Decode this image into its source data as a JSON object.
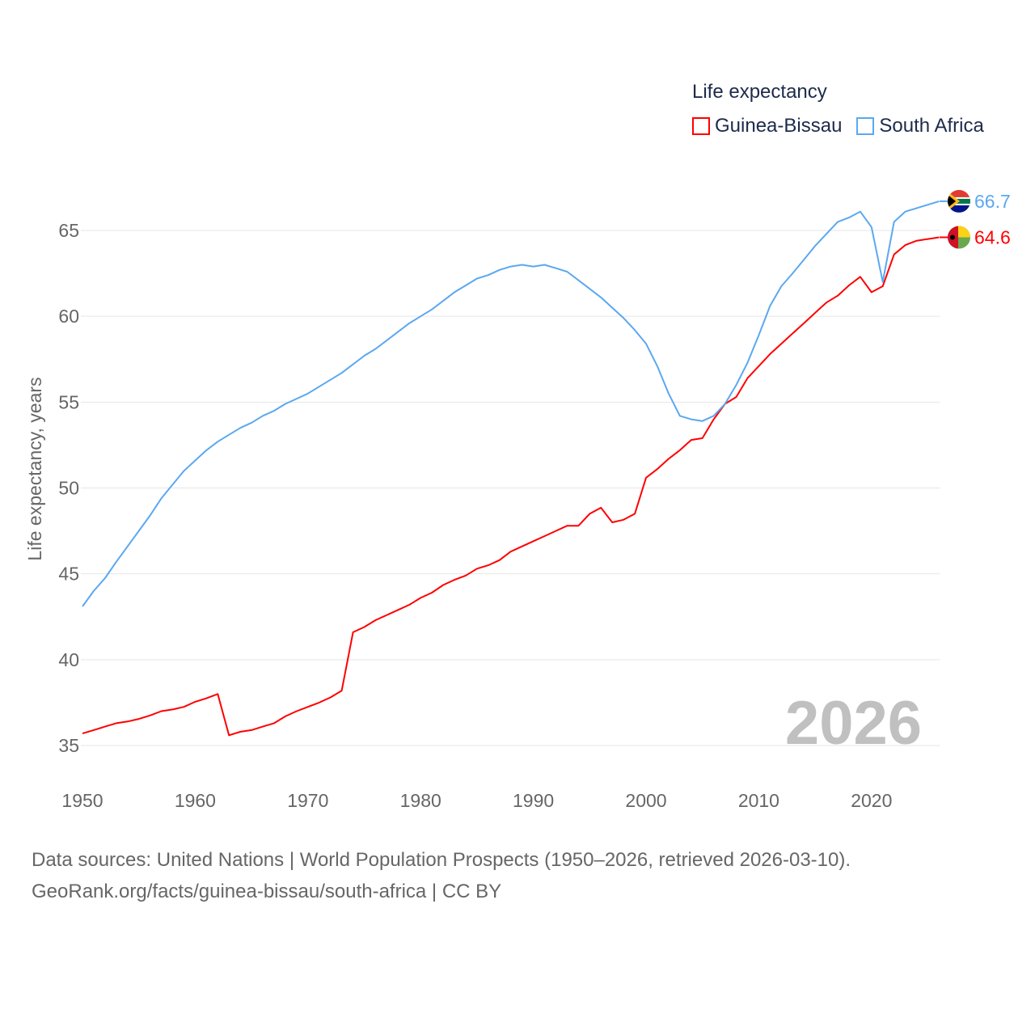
{
  "chart_data": {
    "type": "line",
    "legend_title": "Life expectancy",
    "ylabel": "Life expectancy, years",
    "xlabel": "",
    "xlim": [
      1950,
      2026
    ],
    "ylim": [
      33,
      68
    ],
    "x_ticks": [
      1950,
      1960,
      1970,
      1980,
      1990,
      2000,
      2010,
      2020
    ],
    "y_ticks": [
      35,
      40,
      45,
      50,
      55,
      60,
      65
    ],
    "grid": true,
    "legend_placement": "top-right",
    "year_watermark": "2026",
    "x": [
      1950,
      1951,
      1952,
      1953,
      1954,
      1955,
      1956,
      1957,
      1958,
      1959,
      1960,
      1961,
      1962,
      1963,
      1964,
      1965,
      1966,
      1967,
      1968,
      1969,
      1970,
      1971,
      1972,
      1973,
      1974,
      1975,
      1976,
      1977,
      1978,
      1979,
      1980,
      1981,
      1982,
      1983,
      1984,
      1985,
      1986,
      1987,
      1988,
      1989,
      1990,
      1991,
      1992,
      1993,
      1994,
      1995,
      1996,
      1997,
      1998,
      1999,
      2000,
      2001,
      2002,
      2003,
      2004,
      2005,
      2006,
      2007,
      2008,
      2009,
      2010,
      2011,
      2012,
      2013,
      2014,
      2015,
      2016,
      2017,
      2018,
      2019,
      2020,
      2021,
      2022,
      2023,
      2024,
      2025,
      2026
    ],
    "series": [
      {
        "name": "Guinea-Bissau",
        "color": "#ff0000",
        "end_label": "64.6",
        "values": [
          35.7,
          35.9,
          36.1,
          36.3,
          36.4,
          36.55,
          36.75,
          37.0,
          37.1,
          37.25,
          37.55,
          37.75,
          38.0,
          35.6,
          35.8,
          35.9,
          36.1,
          36.3,
          36.7,
          37.0,
          37.25,
          37.5,
          37.8,
          38.2,
          41.6,
          41.9,
          42.3,
          42.6,
          42.9,
          43.2,
          43.6,
          43.9,
          44.35,
          44.65,
          44.9,
          45.3,
          45.5,
          45.8,
          46.3,
          46.6,
          46.9,
          47.2,
          47.5,
          47.8,
          47.8,
          48.5,
          48.85,
          48.0,
          48.15,
          48.5,
          50.6,
          51.1,
          51.7,
          52.2,
          52.8,
          52.9,
          54.0,
          54.9,
          55.3,
          56.4,
          57.1,
          57.8,
          58.4,
          59.0,
          59.6,
          60.2,
          60.8,
          61.2,
          61.8,
          62.3,
          61.4,
          61.75,
          63.6,
          64.15,
          64.4,
          64.5,
          64.6
        ]
      },
      {
        "name": "South Africa",
        "color": "#5ba8f0",
        "end_label": "66.7",
        "values": [
          43.1,
          44.0,
          44.75,
          45.7,
          46.6,
          47.5,
          48.4,
          49.4,
          50.2,
          51.0,
          51.6,
          52.2,
          52.7,
          53.1,
          53.5,
          53.8,
          54.2,
          54.5,
          54.9,
          55.2,
          55.5,
          55.9,
          56.3,
          56.7,
          57.2,
          57.7,
          58.1,
          58.6,
          59.1,
          59.6,
          60.0,
          60.4,
          60.9,
          61.4,
          61.8,
          62.2,
          62.4,
          62.7,
          62.9,
          63.0,
          62.9,
          63.0,
          62.8,
          62.6,
          62.1,
          61.6,
          61.1,
          60.5,
          59.9,
          59.2,
          58.4,
          57.1,
          55.5,
          54.2,
          54.0,
          53.9,
          54.2,
          54.9,
          56.0,
          57.3,
          58.9,
          60.6,
          61.75,
          62.5,
          63.3,
          64.1,
          64.8,
          65.5,
          65.75,
          66.1,
          65.2,
          62.0,
          65.5,
          66.1,
          66.3,
          66.5,
          66.7
        ]
      }
    ]
  },
  "footer": {
    "line1": "Data sources: United Nations | World Population Prospects (1950–2026, retrieved 2026-03-10).",
    "line2": "GeoRank.org/facts/guinea-bissau/south-africa | CC BY"
  }
}
